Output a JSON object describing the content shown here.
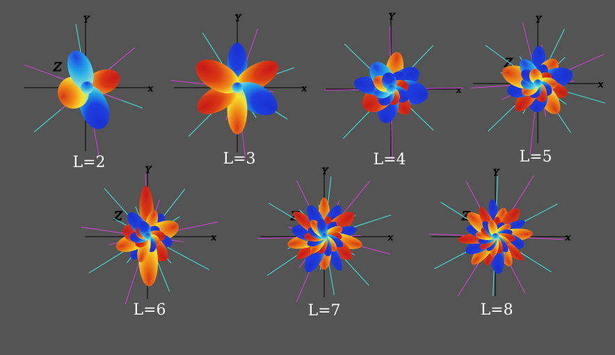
{
  "figure": {
    "background": "#545454",
    "colormap": [
      "#1a2fd0",
      "#23a8e8",
      "#8fe6c8",
      "#f2e630",
      "#f08a16",
      "#c81818"
    ],
    "guide_colors": [
      "#3fe0e0",
      "#d23fd6"
    ],
    "panels": [
      {
        "label": "L=2",
        "axis_letters": [
          "Z",
          "x",
          "Y"
        ]
      },
      {
        "label": "L=3",
        "axis_letters": [
          "x",
          "Y"
        ]
      },
      {
        "label": "L=4",
        "axis_letters": [
          "x",
          "Y"
        ]
      },
      {
        "label": "L=5",
        "axis_letters": [
          "Z",
          "x",
          "Y"
        ]
      },
      {
        "label": "L=6",
        "axis_letters": [
          "Z",
          "x",
          "Y"
        ]
      },
      {
        "label": "L=7",
        "axis_letters": [
          "Z",
          "x",
          "Y"
        ]
      },
      {
        "label": "L=8",
        "axis_letters": [
          "Z",
          "x",
          "Y"
        ]
      }
    ]
  }
}
